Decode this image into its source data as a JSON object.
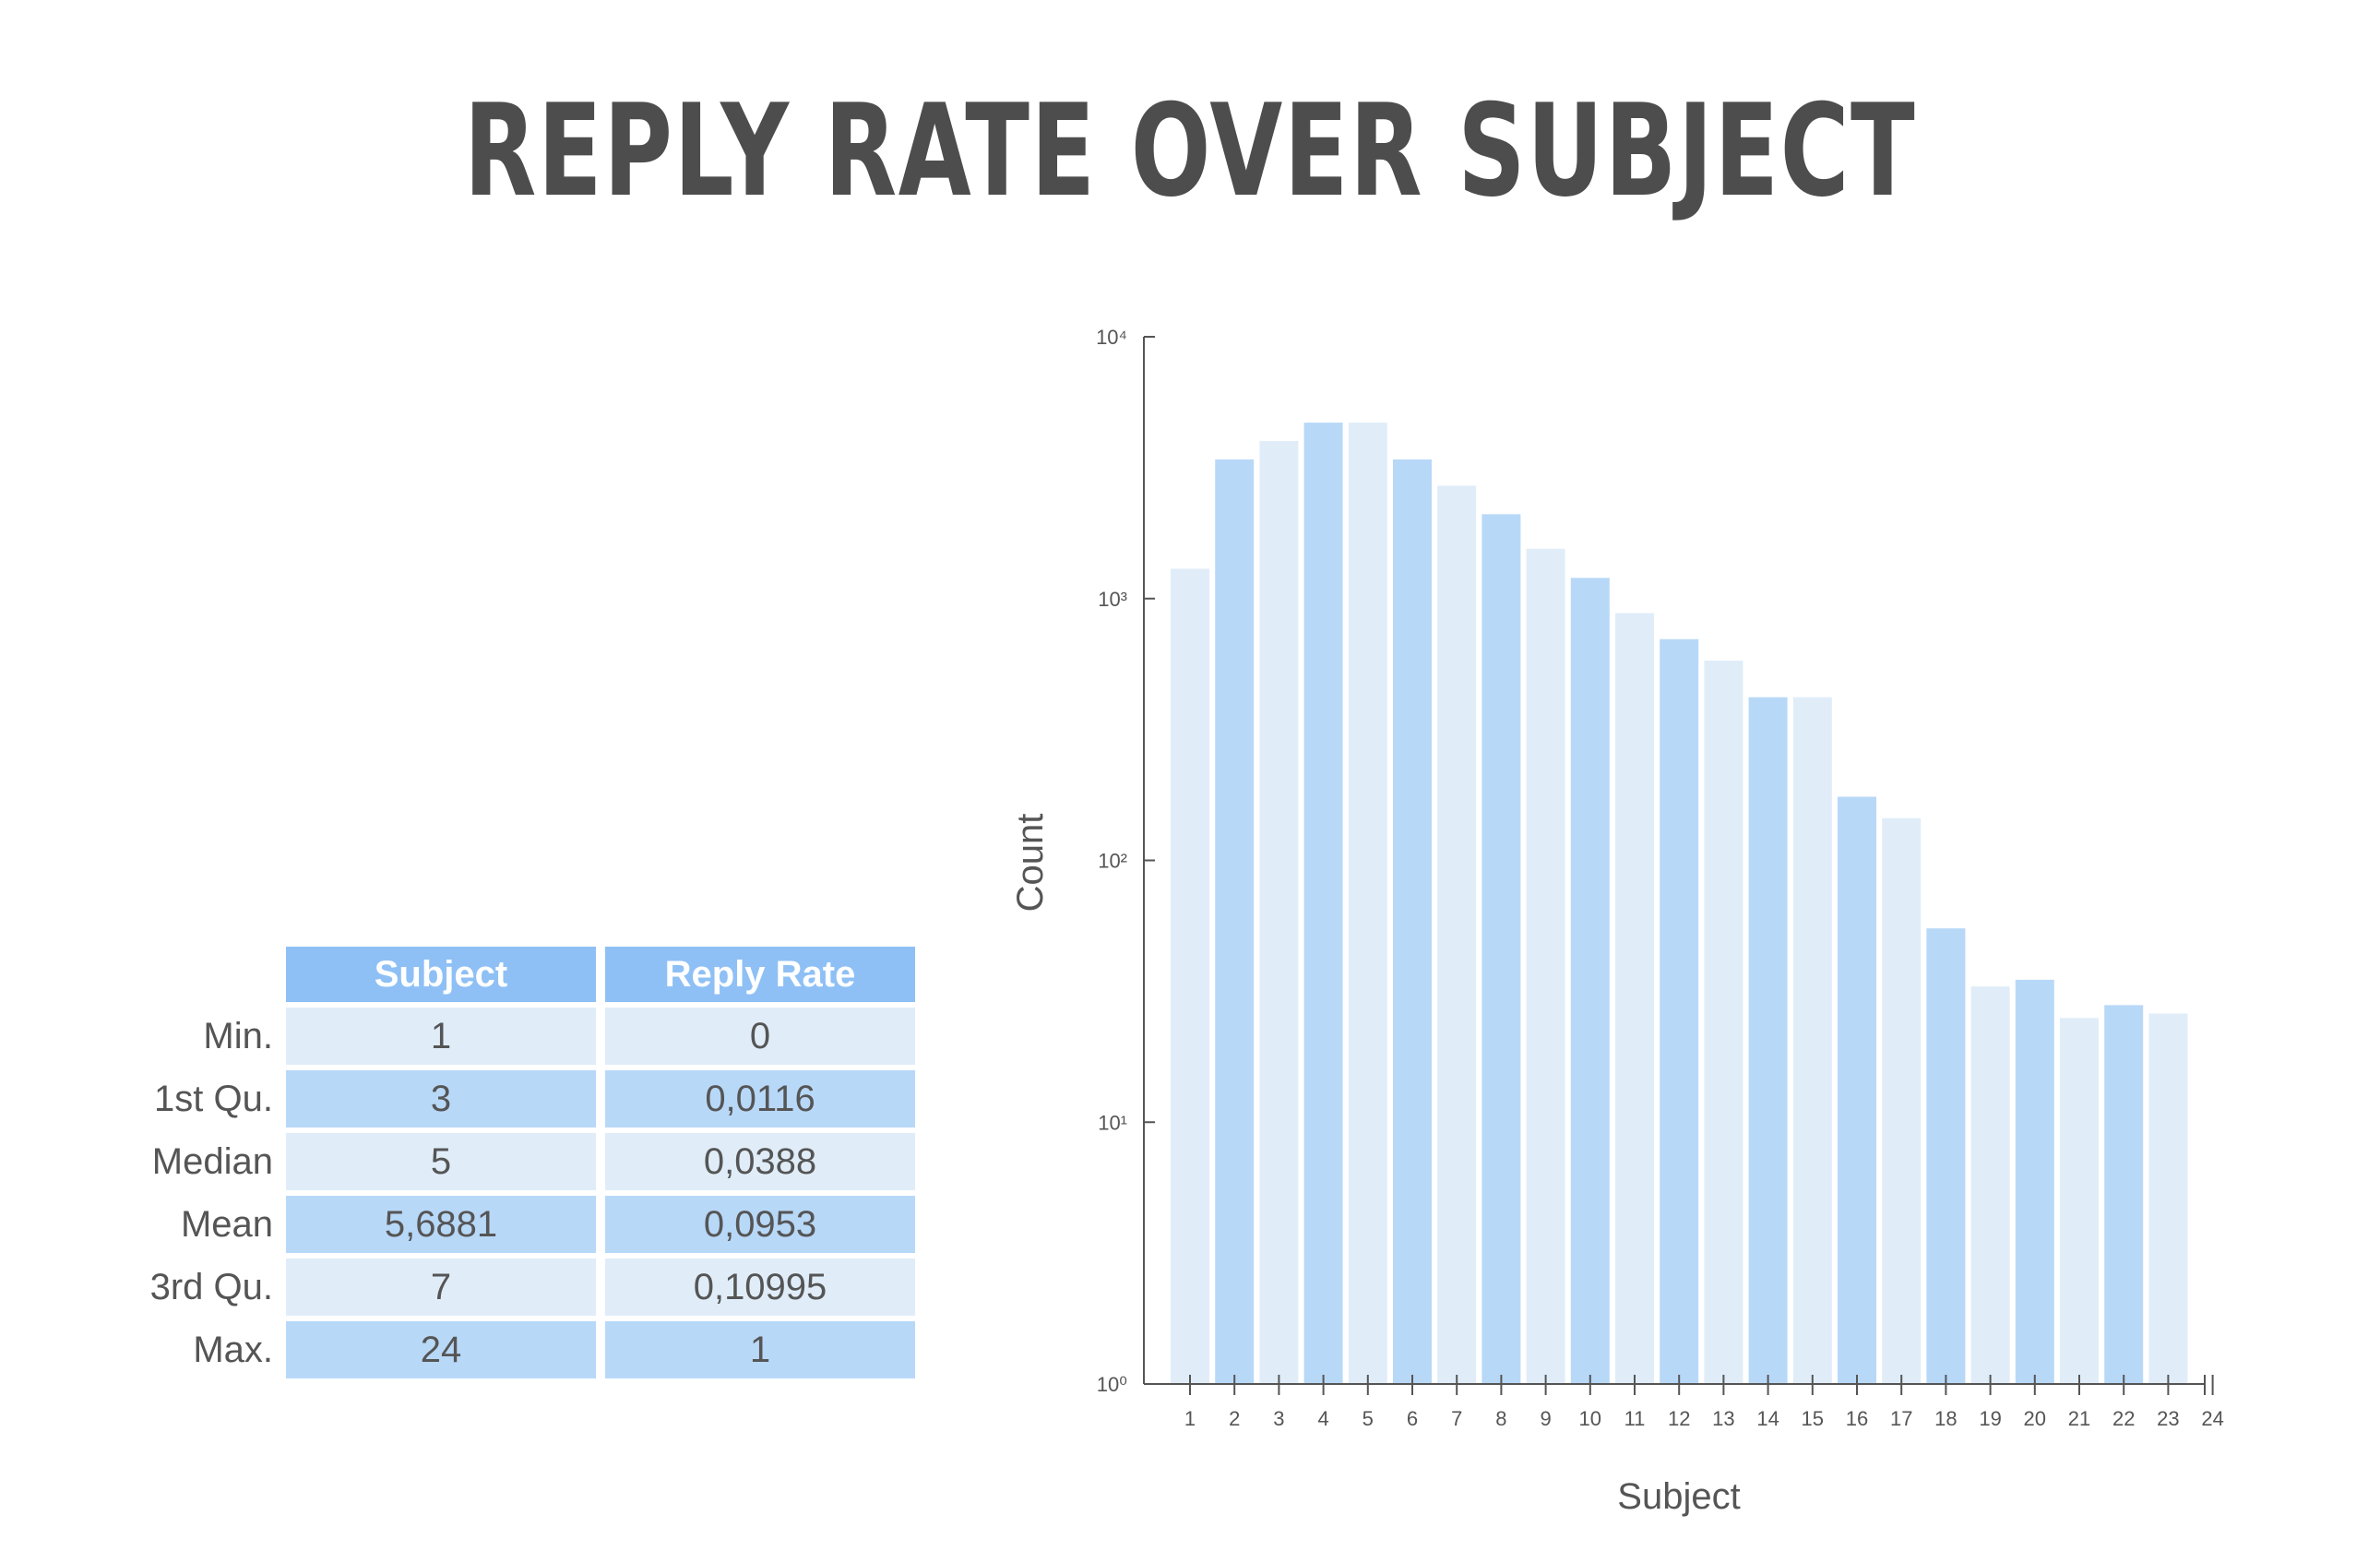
{
  "title": "REPLY RATE OVER SUBJECT",
  "table": {
    "headers": [
      "Subject",
      "Reply Rate"
    ],
    "rows": [
      {
        "label": "Min.",
        "subject": "1",
        "reply_rate": "0"
      },
      {
        "label": "1st Qu.",
        "subject": "3",
        "reply_rate": "0,0116"
      },
      {
        "label": "Median",
        "subject": "5",
        "reply_rate": "0,0388"
      },
      {
        "label": "Mean",
        "subject": "5,6881",
        "reply_rate": "0,0953"
      },
      {
        "label": "3rd Qu.",
        "subject": "7",
        "reply_rate": "0,10995"
      },
      {
        "label": "Max.",
        "subject": "24",
        "reply_rate": "1"
      }
    ]
  },
  "chart_data": {
    "type": "bar",
    "xlabel": "Subject",
    "ylabel": "Count",
    "yscale": "log",
    "ylim": [
      1,
      10000
    ],
    "y_ticks": [
      {
        "value": 1,
        "label": "10⁰"
      },
      {
        "value": 10,
        "label": "10¹"
      },
      {
        "value": 100,
        "label": "10²"
      },
      {
        "value": 1000,
        "label": "10³"
      },
      {
        "value": 10000,
        "label": "10⁴"
      }
    ],
    "categories": [
      "1",
      "2",
      "3",
      "4",
      "5",
      "6",
      "7",
      "8",
      "9",
      "10",
      "11",
      "12",
      "13",
      "14",
      "15",
      "16",
      "17",
      "18",
      "19",
      "20",
      "21",
      "22",
      "23",
      "24"
    ],
    "values": [
      1300,
      3400,
      4000,
      4700,
      4700,
      3400,
      2700,
      2100,
      1550,
      1200,
      880,
      700,
      580,
      420,
      420,
      175,
      145,
      55,
      33,
      35,
      25,
      28,
      26,
      0
    ],
    "bar_colors": [
      "#e0edf9",
      "#b8d8f8",
      "#e0edf9",
      "#b8d8f8",
      "#e0edf9",
      "#b8d8f8",
      "#e0edf9",
      "#b8d8f8",
      "#e0edf9",
      "#b8d8f8",
      "#e0edf9",
      "#b8d8f8",
      "#e0edf9",
      "#b8d8f8",
      "#e0edf9",
      "#b8d8f8",
      "#e0edf9",
      "#b8d8f8",
      "#e0edf9",
      "#b8d8f8",
      "#e0edf9",
      "#b8d8f8",
      "#e0edf9"
    ],
    "grid": false,
    "axis_color": "#555555"
  }
}
